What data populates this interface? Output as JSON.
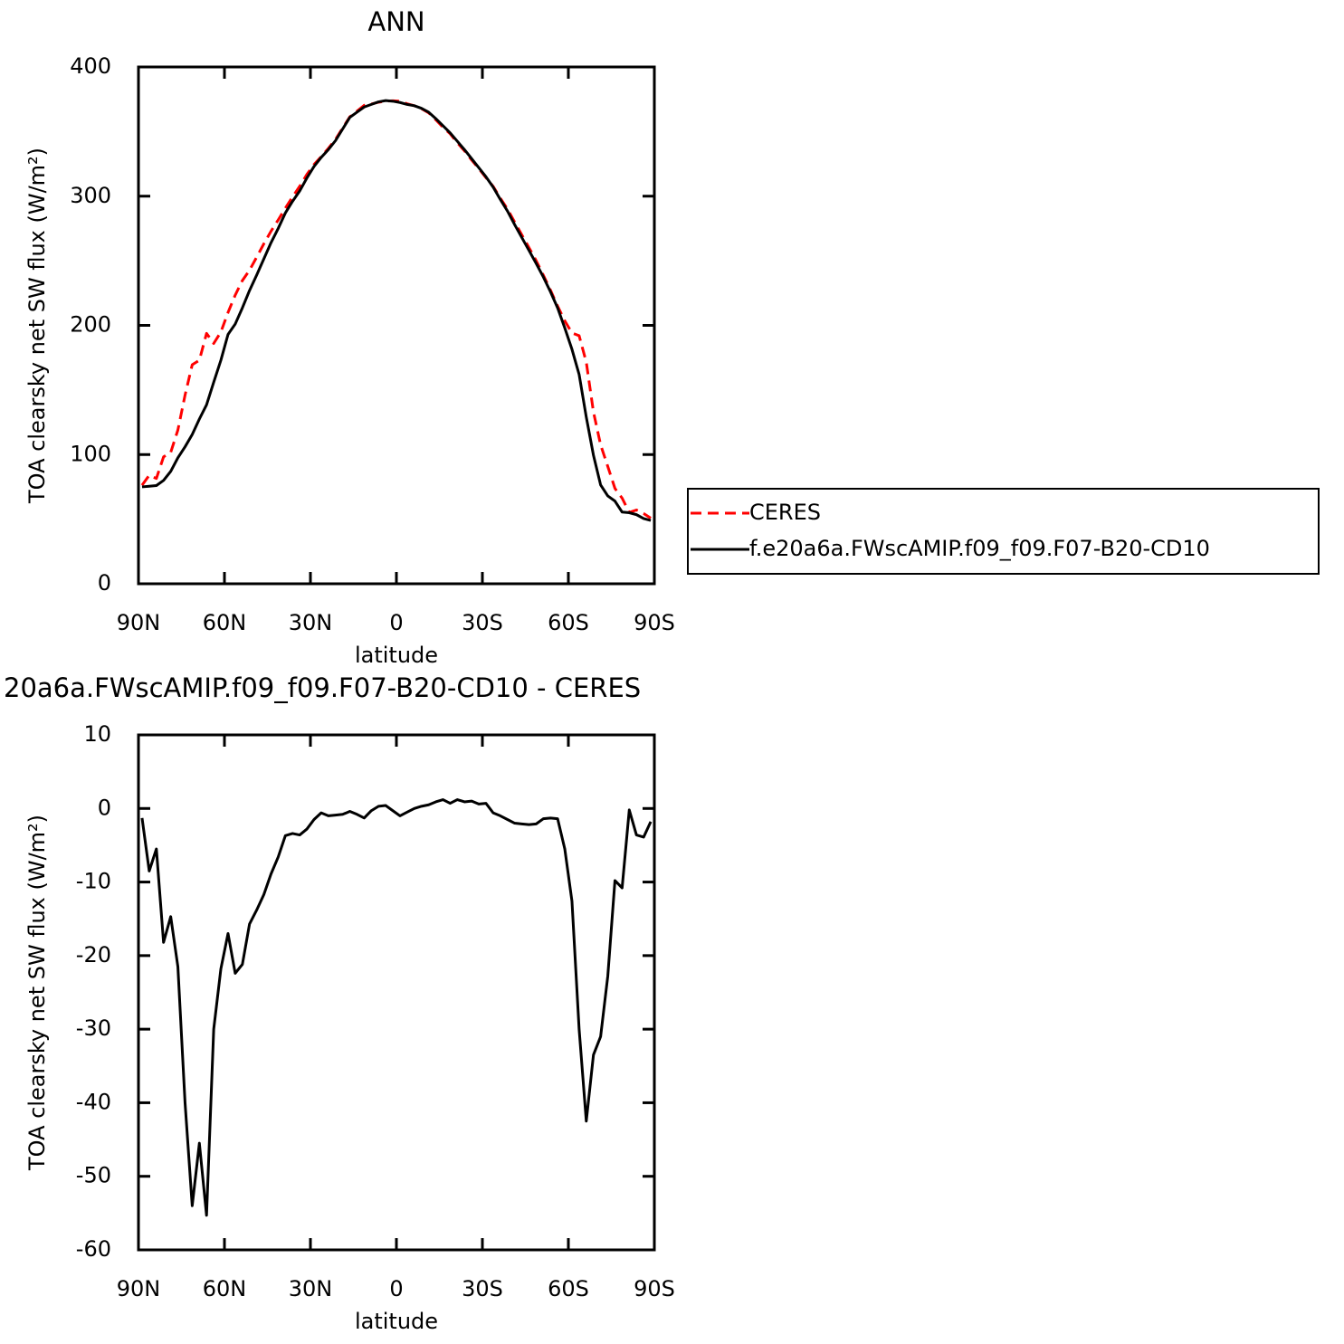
{
  "chart_data": [
    {
      "type": "line",
      "title": "ANN",
      "xlabel": "latitude",
      "ylabel": "TOA clearsky net SW flux (W/m²)",
      "x": [
        88.75,
        86.25,
        83.75,
        81.25,
        78.75,
        76.25,
        73.75,
        71.25,
        68.75,
        66.25,
        63.75,
        61.25,
        58.75,
        56.25,
        53.75,
        51.25,
        48.75,
        46.25,
        43.75,
        41.25,
        38.75,
        36.25,
        33.75,
        31.25,
        28.75,
        26.25,
        23.75,
        21.25,
        18.75,
        16.25,
        13.75,
        11.25,
        8.75,
        6.25,
        3.75,
        1.25,
        -1.25,
        -3.75,
        -6.25,
        -8.75,
        -11.25,
        -13.75,
        -16.25,
        -18.75,
        -21.25,
        -23.75,
        -26.25,
        -28.75,
        -31.25,
        -33.75,
        -36.25,
        -38.75,
        -41.25,
        -43.75,
        -46.25,
        -48.75,
        -51.25,
        -53.75,
        -56.25,
        -58.75,
        -61.25,
        -63.75,
        -66.25,
        -68.75,
        -71.25,
        -73.75,
        -76.25,
        -78.75,
        -81.25,
        -83.75,
        -86.25,
        -88.75
      ],
      "series": [
        {
          "name": "CERES",
          "color": "#ff0000",
          "dashed": true,
          "values": [
            76.3,
            84,
            81.5,
            98.2,
            101.7,
            119,
            146,
            169.5,
            173,
            193.8,
            186,
            194.8,
            210,
            223.4,
            234.7,
            242.7,
            252.8,
            263.2,
            272.9,
            281.6,
            290.7,
            299.4,
            307.6,
            316.8,
            324.5,
            330.6,
            337,
            343.9,
            352.8,
            361.4,
            365.8,
            370.3,
            371.3,
            372.7,
            373.6,
            373.8,
            373.5,
            371.5,
            370,
            367.7,
            364.5,
            359.1,
            353.3,
            348.3,
            341.3,
            335.1,
            328,
            321.4,
            314.3,
            307.6,
            298.5,
            290,
            280,
            270.1,
            260.2,
            250.1,
            238.9,
            227.3,
            214.9,
            203.5,
            194.1,
            192,
            171.5,
            133,
            107.5,
            90.8,
            73.8,
            66.3,
            55.2,
            57.1,
            54.4,
            50.8
          ]
        },
        {
          "name": "f.e20a6a.FWscAMIP.f09_f09.F07-B20-CD10",
          "color": "#000000",
          "dashed": false,
          "values": [
            75,
            75.5,
            76,
            80,
            87,
            97.5,
            106,
            115.5,
            127.5,
            138.5,
            156,
            173,
            193,
            201,
            213.5,
            227,
            239,
            251.5,
            264,
            275,
            287,
            296,
            304,
            314,
            323,
            330,
            336,
            343,
            352,
            361,
            365,
            369,
            371,
            373,
            374,
            373.5,
            372.5,
            371,
            370,
            368,
            365,
            360,
            354.5,
            349,
            342.5,
            336,
            329,
            322,
            315,
            307,
            297.5,
            288.5,
            278,
            268,
            258,
            248,
            237.5,
            226,
            213.5,
            198,
            181.5,
            162,
            129,
            99.5,
            76.5,
            68,
            64,
            55.5,
            55,
            53.5,
            50.5,
            49
          ]
        }
      ],
      "xlim": [
        90,
        -90
      ],
      "xticks": [
        {
          "value": 90,
          "label": "90N"
        },
        {
          "value": 60,
          "label": "60N"
        },
        {
          "value": 30,
          "label": "30N"
        },
        0,
        {
          "value": -30,
          "label": "30S"
        },
        {
          "value": -60,
          "label": "60S"
        },
        {
          "value": -90,
          "label": "90S"
        }
      ],
      "ylim": [
        0,
        400
      ],
      "yticks": [
        0,
        100,
        200,
        300,
        400
      ],
      "legend": "right"
    },
    {
      "type": "line",
      "title": "20a6a.FWscAMIP.f09_f09.F07-B20-CD10 - CERES",
      "xlabel": "latitude",
      "ylabel": "TOA clearsky net SW flux (W/m²)",
      "x": [
        88.75,
        86.25,
        83.75,
        81.25,
        78.75,
        76.25,
        73.75,
        71.25,
        68.75,
        66.25,
        63.75,
        61.25,
        58.75,
        56.25,
        53.75,
        51.25,
        48.75,
        46.25,
        43.75,
        41.25,
        38.75,
        36.25,
        33.75,
        31.25,
        28.75,
        26.25,
        23.75,
        21.25,
        18.75,
        16.25,
        13.75,
        11.25,
        8.75,
        6.25,
        3.75,
        1.25,
        -1.25,
        -3.75,
        -6.25,
        -8.75,
        -11.25,
        -13.75,
        -16.25,
        -18.75,
        -21.25,
        -23.75,
        -26.25,
        -28.75,
        -31.25,
        -33.75,
        -36.25,
        -38.75,
        -41.25,
        -43.75,
        -46.25,
        -48.75,
        -51.25,
        -53.75,
        -56.25,
        -58.75,
        -61.25,
        -63.75,
        -66.25,
        -68.75,
        -71.25,
        -73.75,
        -76.25,
        -78.75,
        -81.25,
        -83.75,
        -86.25,
        -88.75
      ],
      "series": [
        {
          "color": "#000000",
          "dashed": false,
          "values": [
            -1.3,
            -8.5,
            -5.5,
            -18.2,
            -14.7,
            -21.5,
            -40,
            -54,
            -45.5,
            -55.3,
            -30,
            -21.8,
            -17,
            -22.4,
            -21.2,
            -15.7,
            -13.8,
            -11.7,
            -8.9,
            -6.6,
            -3.7,
            -3.4,
            -3.6,
            -2.8,
            -1.5,
            -0.6,
            -1,
            -0.9,
            -0.8,
            -0.4,
            -0.8,
            -1.3,
            -0.3,
            0.3,
            0.4,
            -0.3,
            -1,
            -0.5,
            0,
            0.3,
            0.5,
            0.9,
            1.2,
            0.7,
            1.2,
            0.9,
            1,
            0.6,
            0.7,
            -0.6,
            -1,
            -1.5,
            -2,
            -2.1,
            -2.2,
            -2.1,
            -1.4,
            -1.3,
            -1.4,
            -5.5,
            -12.6,
            -30,
            -42.5,
            -33.5,
            -31,
            -22.8,
            -9.8,
            -10.8,
            -0.2,
            -3.6,
            -3.9,
            -1.8
          ]
        }
      ],
      "xlim": [
        90,
        -90
      ],
      "xticks": [
        {
          "value": 90,
          "label": "90N"
        },
        {
          "value": 60,
          "label": "60N"
        },
        {
          "value": 30,
          "label": "30N"
        },
        0,
        {
          "value": -30,
          "label": "30S"
        },
        {
          "value": -60,
          "label": "60S"
        },
        {
          "value": -90,
          "label": "90S"
        }
      ],
      "ylim": [
        -60,
        10
      ],
      "yticks": [
        -60,
        -50,
        -40,
        -30,
        -20,
        -10,
        0,
        10
      ]
    }
  ]
}
